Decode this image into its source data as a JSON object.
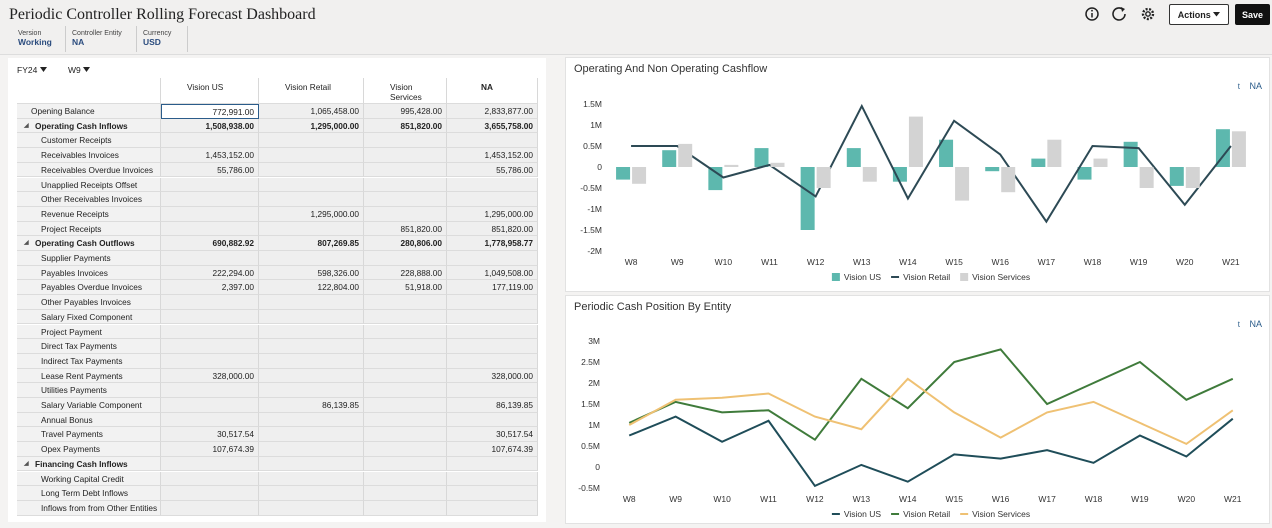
{
  "header": {
    "title": "Periodic Controller Rolling Forecast Dashboard",
    "fields": [
      {
        "label": "Version",
        "value": "Working"
      },
      {
        "label": "Controller Entity",
        "value": "NA"
      },
      {
        "label": "Currency",
        "value": "USD"
      }
    ],
    "actions_button": "Actions",
    "save_button": "Save"
  },
  "filters": [
    "FY24",
    "W9"
  ],
  "table": {
    "columns": [
      "Vision US",
      "Vision Retail",
      "Vision Services",
      "NA"
    ],
    "rows": [
      {
        "label": "Opening Balance",
        "group": false,
        "cells": [
          "772,991.00",
          "1,065,458.00",
          "995,428.00",
          "2,833,877.00"
        ]
      },
      {
        "label": "Operating Cash Inflows",
        "group": true,
        "cells": [
          "1,508,938.00",
          "1,295,000.00",
          "851,820.00",
          "3,655,758.00"
        ]
      },
      {
        "label": "Customer Receipts",
        "group": false,
        "cells": [
          null,
          null,
          null,
          null
        ]
      },
      {
        "label": "Receivables Invoices",
        "group": false,
        "cells": [
          "1,453,152.00",
          null,
          null,
          "1,453,152.00"
        ]
      },
      {
        "label": "Receivables Overdue Invoices",
        "group": false,
        "cells": [
          "55,786.00",
          null,
          null,
          "55,786.00"
        ]
      },
      {
        "label": "Unapplied Receipts Offset",
        "group": false,
        "cells": [
          null,
          null,
          null,
          null
        ]
      },
      {
        "label": "Other Receivables Invoices",
        "group": false,
        "cells": [
          null,
          null,
          null,
          null
        ]
      },
      {
        "label": "Revenue Receipts",
        "group": false,
        "cells": [
          null,
          "1,295,000.00",
          null,
          "1,295,000.00"
        ]
      },
      {
        "label": "Project Receipts",
        "group": false,
        "cells": [
          null,
          null,
          "851,820.00",
          "851,820.00"
        ]
      },
      {
        "label": "Operating Cash Outflows",
        "group": true,
        "cells": [
          "690,882.92",
          "807,269.85",
          "280,806.00",
          "1,778,958.77"
        ]
      },
      {
        "label": "Supplier Payments",
        "group": false,
        "cells": [
          null,
          null,
          null,
          null
        ]
      },
      {
        "label": "Payables Invoices",
        "group": false,
        "cells": [
          "222,294.00",
          "598,326.00",
          "228,888.00",
          "1,049,508.00"
        ]
      },
      {
        "label": "Payables Overdue Invoices",
        "group": false,
        "cells": [
          "2,397.00",
          "122,804.00",
          "51,918.00",
          "177,119.00"
        ]
      },
      {
        "label": "Other Payables Invoices",
        "group": false,
        "cells": [
          null,
          null,
          null,
          null
        ]
      },
      {
        "label": "Salary Fixed  Component",
        "group": false,
        "cells": [
          null,
          null,
          null,
          null
        ]
      },
      {
        "label": "Project Payment",
        "group": false,
        "cells": [
          null,
          null,
          null,
          null
        ]
      },
      {
        "label": "Direct Tax Payments",
        "group": false,
        "cells": [
          null,
          null,
          null,
          null
        ]
      },
      {
        "label": "Indirect Tax Payments",
        "group": false,
        "cells": [
          null,
          null,
          null,
          null
        ]
      },
      {
        "label": "Lease Rent Payments",
        "group": false,
        "cells": [
          "328,000.00",
          null,
          null,
          "328,000.00"
        ]
      },
      {
        "label": "Utilities Payments",
        "group": false,
        "cells": [
          null,
          null,
          null,
          null
        ]
      },
      {
        "label": "Salary Variable Component",
        "group": false,
        "cells": [
          null,
          "86,139.85",
          null,
          "86,139.85"
        ]
      },
      {
        "label": "Annual Bonus",
        "group": false,
        "cells": [
          null,
          null,
          null,
          null
        ]
      },
      {
        "label": "Travel Payments",
        "group": false,
        "cells": [
          "30,517.54",
          null,
          null,
          "30,517.54"
        ]
      },
      {
        "label": "Opex Payments",
        "group": false,
        "cells": [
          "107,674.39",
          null,
          null,
          "107,674.39"
        ]
      },
      {
        "label": "Financing Cash Inflows",
        "group": true,
        "cells": [
          null,
          null,
          null,
          null
        ]
      },
      {
        "label": "Working Capital Credit",
        "group": false,
        "cells": [
          null,
          null,
          null,
          null
        ]
      },
      {
        "label": "Long Term Debt Inflows",
        "group": false,
        "cells": [
          null,
          null,
          null,
          null
        ]
      },
      {
        "label": "Inflows from from Other Entities",
        "group": false,
        "cells": [
          null,
          null,
          null,
          null
        ]
      }
    ]
  },
  "chart_data": [
    {
      "type": "combo",
      "title": "Operating And Non Operating Cashflow",
      "link_label": "NA",
      "categories": [
        "W8",
        "W9",
        "W10",
        "W11",
        "W12",
        "W13",
        "W14",
        "W15",
        "W16",
        "W17",
        "W18",
        "W19",
        "W20",
        "W21"
      ],
      "series": [
        {
          "name": "Vision US",
          "type": "bar",
          "color": "#5db8ae",
          "values": [
            -300000,
            400000,
            -550000,
            450000,
            -1500000,
            450000,
            -350000,
            650000,
            -100000,
            200000,
            -300000,
            600000,
            -450000,
            900000
          ]
        },
        {
          "name": "Vision Retail",
          "type": "line",
          "color": "#2d4a55",
          "values": [
            500000,
            500000,
            -250000,
            50000,
            -700000,
            1450000,
            -750000,
            1100000,
            300000,
            -1300000,
            500000,
            450000,
            -900000,
            500000
          ]
        },
        {
          "name": "Vision Services",
          "type": "bar",
          "color": "#d3d3d3",
          "values": [
            -400000,
            550000,
            50000,
            100000,
            -500000,
            -350000,
            1200000,
            -800000,
            -600000,
            650000,
            200000,
            -500000,
            -500000,
            850000
          ]
        }
      ],
      "ylim": [
        -2000000,
        1500000
      ],
      "yticks": [
        {
          "value": -2000000,
          "label": "-2M"
        },
        {
          "value": -1500000,
          "label": "-1.5M"
        },
        {
          "value": -1000000,
          "label": "-1M"
        },
        {
          "value": -500000,
          "label": "-0.5M"
        },
        0,
        {
          "value": 500000,
          "label": "0.5M"
        },
        {
          "value": 1000000,
          "label": "1M"
        },
        {
          "value": 1500000,
          "label": "1.5M"
        }
      ],
      "grid": false
    },
    {
      "type": "line",
      "title": "Periodic Cash Position By Entity",
      "link_label": "NA",
      "categories": [
        "W8",
        "W9",
        "W10",
        "W11",
        "W12",
        "W13",
        "W14",
        "W15",
        "W16",
        "W17",
        "W18",
        "W19",
        "W20",
        "W21"
      ],
      "series": [
        {
          "name": "Vision US",
          "type": "line",
          "color": "#1f4d59",
          "values": [
            750000,
            1200000,
            600000,
            1100000,
            -450000,
            50000,
            -350000,
            300000,
            200000,
            400000,
            100000,
            750000,
            250000,
            1150000
          ]
        },
        {
          "name": "Vision Retail",
          "type": "line",
          "color": "#3f7b3b",
          "values": [
            1050000,
            1550000,
            1300000,
            1350000,
            650000,
            2100000,
            1400000,
            2500000,
            2800000,
            1500000,
            2000000,
            2500000,
            1600000,
            2100000
          ]
        },
        {
          "name": "Vision Services",
          "type": "line",
          "color": "#efc173",
          "values": [
            1000000,
            1600000,
            1650000,
            1750000,
            1200000,
            900000,
            2100000,
            1300000,
            700000,
            1300000,
            1550000,
            1050000,
            550000,
            1350000
          ]
        }
      ],
      "ylim": [
        -500000,
        3000000
      ],
      "yticks": [
        {
          "value": -500000,
          "label": "-0.5M"
        },
        0,
        {
          "value": 500000,
          "label": "0.5M"
        },
        {
          "value": 1000000,
          "label": "1M"
        },
        {
          "value": 1500000,
          "label": "1.5M"
        },
        {
          "value": 2000000,
          "label": "2M"
        },
        {
          "value": 2500000,
          "label": "2.5M"
        },
        {
          "value": 3000000,
          "label": "3M"
        }
      ],
      "grid": false
    }
  ]
}
